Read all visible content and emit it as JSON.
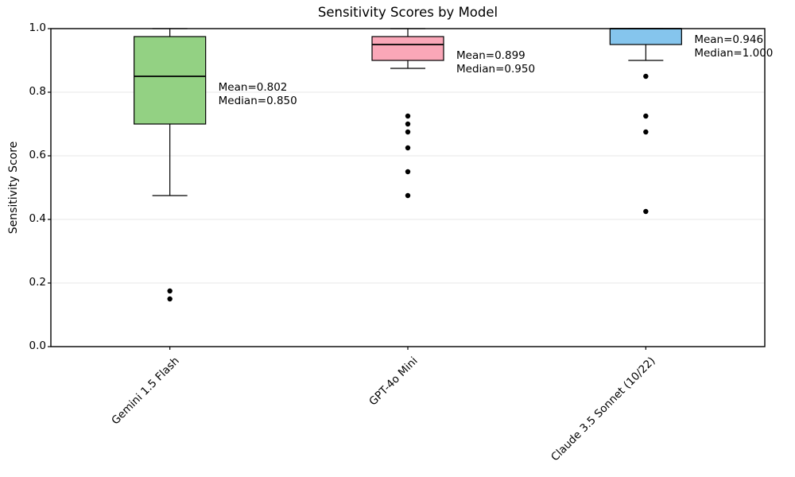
{
  "chart_data": {
    "type": "boxplot",
    "title": "Sensitivity Scores by Model",
    "xlabel": "",
    "ylabel": "Sensitivity Score",
    "ylim": [
      0.0,
      1.0
    ],
    "yticks": [
      0.0,
      0.2,
      0.4,
      0.6,
      0.8,
      1.0
    ],
    "ytick_labels": [
      "0.0",
      "0.2",
      "0.4",
      "0.6",
      "0.8",
      "1.0"
    ],
    "grid": "horizontal",
    "legend": "none",
    "colors": {
      "grid": "#e7e7e7",
      "edge": "#000000",
      "flier": "#000000",
      "background": "#ffffff"
    },
    "categories": [
      "Gemini 1.5 Flash",
      "GPT-4o Mini",
      "Claude 3.5 Sonnet (10/22)"
    ],
    "series": [
      {
        "model": "Gemini 1.5 Flash",
        "color": "#93d183",
        "whisker_low": 0.475,
        "q1": 0.7,
        "median": 0.85,
        "q3": 0.975,
        "whisker_high": 1.0,
        "mean": 0.802,
        "outliers": [
          0.175,
          0.15
        ],
        "annotation": [
          "Mean=0.802",
          "Median=0.850"
        ]
      },
      {
        "model": "GPT-4o Mini",
        "color": "#faa7b8",
        "whisker_low": 0.875,
        "q1": 0.9,
        "median": 0.95,
        "q3": 0.975,
        "whisker_high": 1.0,
        "mean": 0.899,
        "outliers": [
          0.725,
          0.7,
          0.675,
          0.625,
          0.55,
          0.475
        ],
        "annotation": [
          "Mean=0.899",
          "Median=0.950"
        ]
      },
      {
        "model": "Claude 3.5 Sonnet (10/22)",
        "color": "#85c5ed",
        "whisker_low": 0.9,
        "q1": 0.95,
        "median": 1.0,
        "q3": 1.0,
        "whisker_high": 1.0,
        "mean": 0.946,
        "outliers": [
          0.85,
          0.725,
          0.675,
          0.425
        ],
        "annotation": [
          "Mean=0.946",
          "Median=1.000"
        ]
      }
    ]
  }
}
